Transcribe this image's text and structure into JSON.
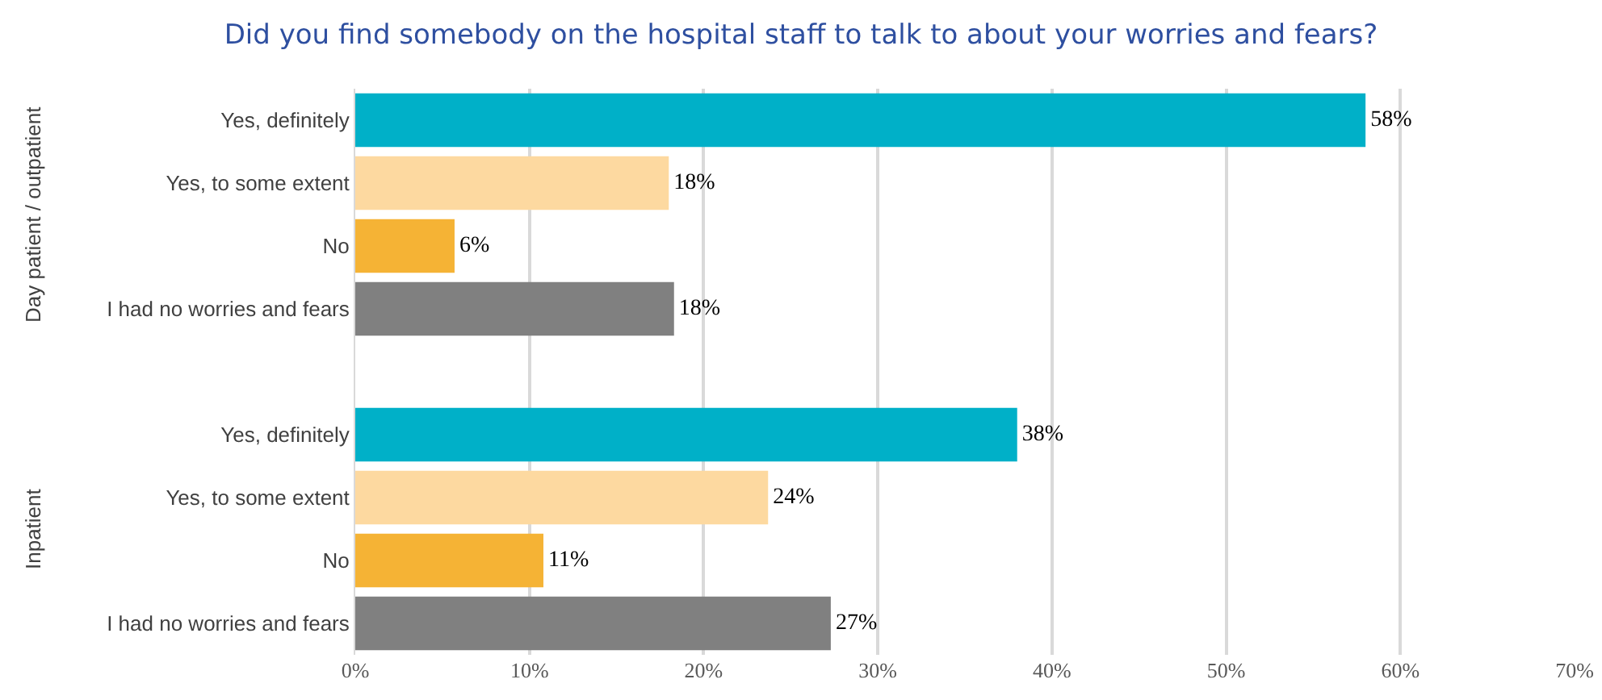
{
  "chart_data": {
    "type": "bar",
    "orientation": "horizontal",
    "title": "Did you find somebody on the hospital staff to talk to about your worries and fears?",
    "categories": [
      "Yes, definitely",
      "Yes, to some extent",
      "No",
      "I had no worries and fears",
      null,
      "Yes, definitely",
      "Yes, to some extent",
      "No",
      "I had no worries and fears"
    ],
    "values": [
      58,
      18,
      5.7,
      18.3,
      null,
      38,
      23.7,
      10.8,
      27.3
    ],
    "value_labels": [
      "58%",
      "18%",
      "6%",
      "18%",
      null,
      "38%",
      "24%",
      "11%",
      "27%"
    ],
    "colors": [
      "#00b0c8",
      "#fdd9a0",
      "#f5b335",
      "#808080",
      null,
      "#00b0c8",
      "#fdd9a0",
      "#f5b335",
      "#808080"
    ],
    "xlim": [
      0,
      70
    ],
    "xticks": [
      {
        "value": 0,
        "label": "0%"
      },
      {
        "value": 10,
        "label": "10%"
      },
      {
        "value": 20,
        "label": "20%"
      },
      {
        "value": 30,
        "label": "30%"
      },
      {
        "value": 40,
        "label": "40%"
      },
      {
        "value": 50,
        "label": "50%"
      },
      {
        "value": 60,
        "label": "60%"
      },
      {
        "value": 70,
        "label": "70%"
      }
    ],
    "grid": "x",
    "annotations": [
      "Day patient / outpatient",
      "Inpatient"
    ]
  }
}
